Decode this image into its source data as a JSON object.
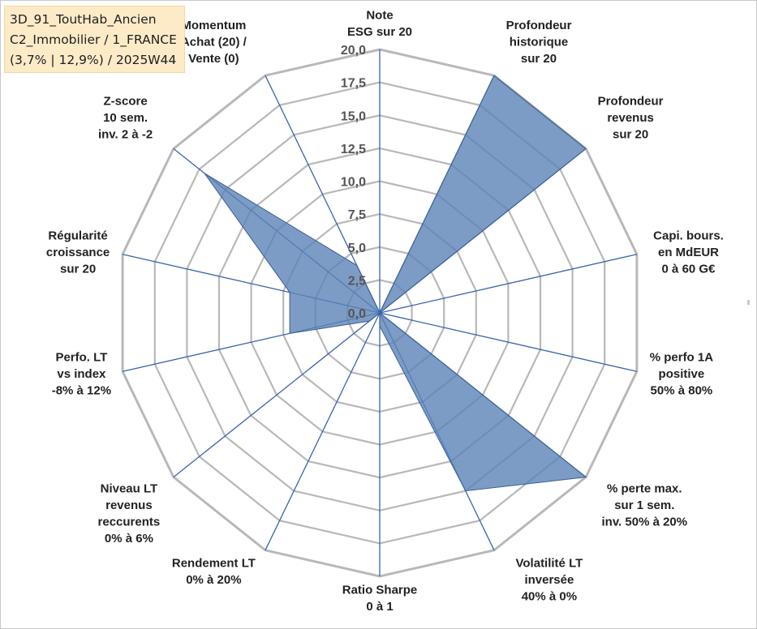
{
  "info_box": {
    "line1": "3D_91_ToutHab_Ancien",
    "line2": "C2_Immobilier / 1_FRANCE",
    "line3": "(3,7% | 12,9%) / 2025W44"
  },
  "colors": {
    "fill": "#5b83b6",
    "fill_opacity": 0.8,
    "series_line": "#3b5f99",
    "spoke": "#3a63b0",
    "grid": "#b8b8b8",
    "tick_text": "#555555",
    "label_text": "#222222"
  },
  "chart_data": {
    "type": "radar",
    "title": "",
    "rlim": [
      0,
      20
    ],
    "grid": true,
    "legend": "none",
    "tick_labels": [
      "0,0",
      "2,5",
      "5,0",
      "7,5",
      "10,0",
      "12,5",
      "15,0",
      "17,5",
      "20,0"
    ],
    "axes": [
      {
        "label": [
          "Note",
          "ESG sur 20"
        ]
      },
      {
        "label": [
          "Profondeur",
          "historique",
          "sur 20"
        ]
      },
      {
        "label": [
          "Profondeur",
          "revenus",
          "sur 20"
        ]
      },
      {
        "label": [
          "Capi. bours.",
          "en MdEUR",
          "0 à 60 G€"
        ]
      },
      {
        "label": [
          "% perfo 1A",
          "positive",
          "50% à 80%"
        ]
      },
      {
        "label": [
          "% perte max.",
          "sur 1 sem.",
          "inv. 50% à 20%"
        ]
      },
      {
        "label": [
          "Volatilité LT",
          "inversée",
          "40% à 0%"
        ]
      },
      {
        "label": [
          "Ratio Sharpe",
          "0 à 1"
        ]
      },
      {
        "label": [
          "Rendement LT",
          "0% à 20%"
        ]
      },
      {
        "label": [
          "Niveau LT",
          "revenus",
          "reccurents",
          "0% à 6%"
        ]
      },
      {
        "label": [
          "Perfo. LT",
          "vs index",
          "-8% à 12%"
        ]
      },
      {
        "label": [
          "Régularité",
          "croissance",
          "sur 20"
        ]
      },
      {
        "label": [
          "Z-score",
          "10 sem.",
          "inv. 2 à -2"
        ]
      },
      {
        "label": [
          "Momentum",
          "Achat (20) /",
          "Vente (0)"
        ]
      }
    ],
    "series": [
      {
        "values": [
          0,
          20,
          20,
          0,
          0,
          20,
          15,
          1,
          0,
          1,
          7,
          7,
          17,
          4
        ]
      }
    ]
  }
}
